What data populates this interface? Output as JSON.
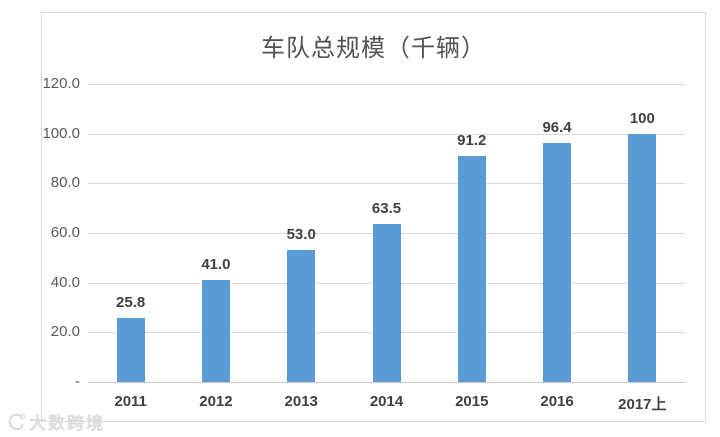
{
  "chart_data": {
    "type": "bar",
    "title": "车队总规模（千辆）",
    "categories": [
      "2011",
      "2012",
      "2013",
      "2014",
      "2015",
      "2016",
      "2017上"
    ],
    "values": [
      25.8,
      41.0,
      53.0,
      63.5,
      91.2,
      96.4,
      100
    ],
    "value_labels": [
      "25.8",
      "41.0",
      "53.0",
      "63.5",
      "91.2",
      "96.4",
      "100"
    ],
    "xlabel": "",
    "ylabel": "",
    "ylim": [
      0,
      120
    ],
    "ytick_values": [
      0,
      20,
      40,
      60,
      80,
      100,
      120
    ],
    "ytick_labels": [
      "-",
      "20.0",
      "40.0",
      "60.0",
      "80.0",
      "100.0",
      "120.0"
    ],
    "grid": true,
    "legend": "none",
    "bar_color": "#5b9bd5",
    "gridline_color": "#d9d9d9",
    "axis_line_color": "#c9c9c9",
    "axis_text_color": "#595959",
    "label_text_color": "#404040",
    "title_color": "#535353"
  },
  "watermark": {
    "text": "大数跨境"
  }
}
